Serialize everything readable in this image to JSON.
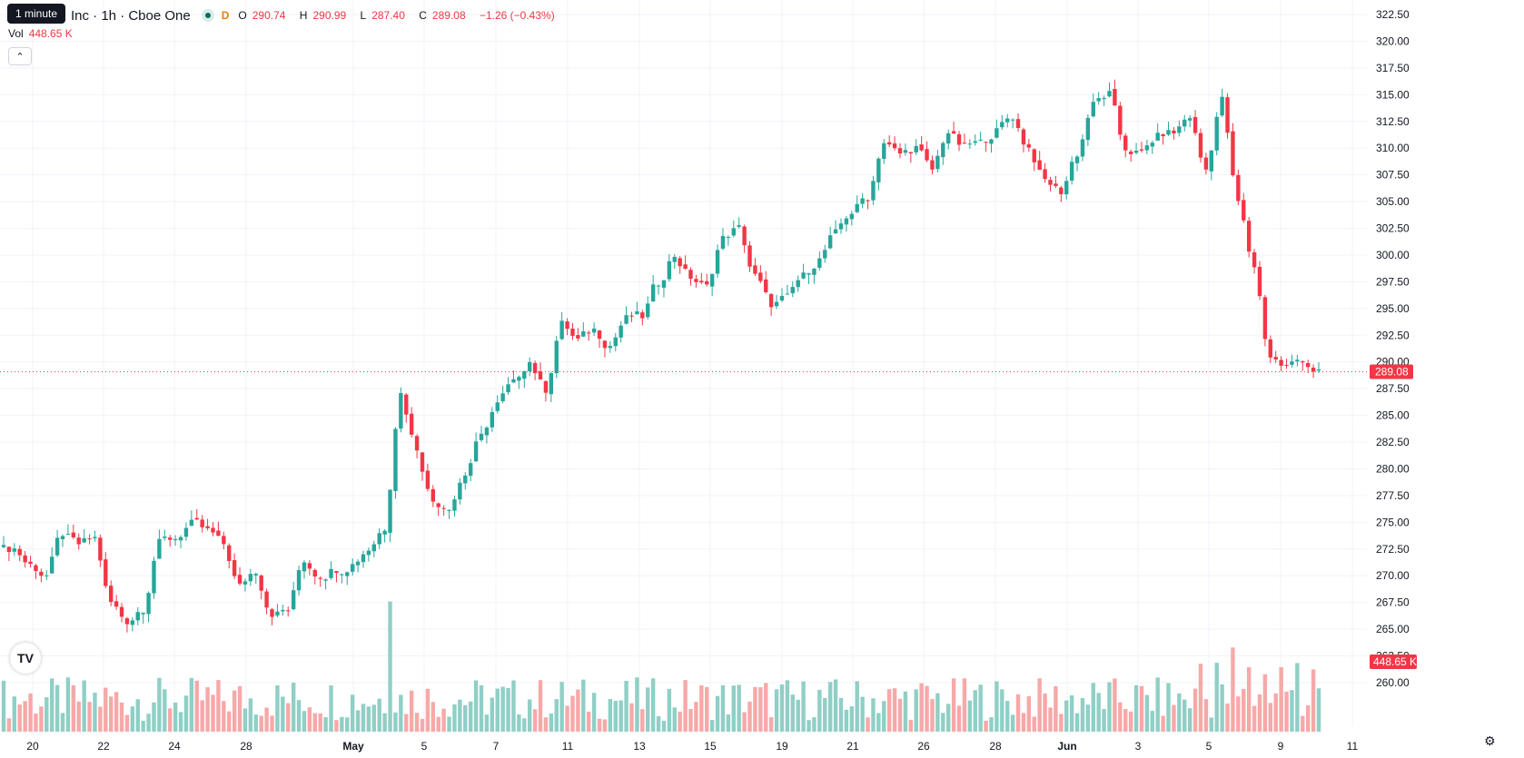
{
  "legend": {
    "tooltip": "1 minute",
    "symbol": "Inc · 1h · Cboe One",
    "market_dot_icon": "market-open-dot",
    "session_badge": "D",
    "ohlc": {
      "o_label": "O",
      "o": "290.74",
      "h_label": "H",
      "h": "290.99",
      "l_label": "L",
      "l": "287.40",
      "c_label": "C",
      "c": "289.08",
      "change": "−1.26 (−0.43%)"
    },
    "vol_label": "Vol",
    "vol_value": "448.65 K"
  },
  "colors": {
    "up": "#26a69a",
    "down": "#f23645",
    "vol_up": "#8fcfc6",
    "vol_down": "#f7a8a8",
    "grid": "#f0f3fa"
  },
  "price_axis": {
    "ticks": [
      "322.50",
      "320.00",
      "317.50",
      "315.00",
      "312.50",
      "310.00",
      "307.50",
      "305.00",
      "302.50",
      "300.00",
      "297.50",
      "295.00",
      "292.50",
      "290.00",
      "287.50",
      "285.00",
      "282.50",
      "280.00",
      "277.50",
      "275.00",
      "272.50",
      "270.00",
      "267.50",
      "265.00",
      "262.50",
      "260.00"
    ],
    "last_price_label": "289.08",
    "last_price": 289.08,
    "volume_label": "448.65 K"
  },
  "time_axis": {
    "ticks": [
      [
        "20",
        0
      ],
      [
        "22",
        1
      ],
      [
        "24",
        2
      ],
      [
        "28",
        3
      ],
      [
        "May",
        4
      ],
      [
        "5",
        5
      ],
      [
        "7",
        6
      ],
      [
        "11",
        7
      ],
      [
        "13",
        8
      ],
      [
        "15",
        9
      ],
      [
        "19",
        10
      ],
      [
        "21",
        11
      ],
      [
        "26",
        12
      ],
      [
        "28",
        13
      ],
      [
        "Jun",
        14
      ],
      [
        "3",
        15
      ],
      [
        "5",
        16
      ],
      [
        "9",
        17
      ],
      [
        "11",
        18
      ]
    ]
  },
  "chart_data": {
    "type": "candlestick",
    "y_range": [
      260,
      322.5
    ],
    "ohlc_closes": [
      272.5,
      271.0,
      270.0,
      274.0,
      273.0,
      273.5,
      267.5,
      265.8,
      267.0,
      273.0,
      273.5,
      274.8,
      274.2,
      273.0,
      269.0,
      270.5,
      266.5,
      266.8,
      271.5,
      270.0,
      270.7,
      271.0,
      272.5,
      274.5,
      287.0,
      282.0,
      277.0,
      276.5,
      279.5,
      283.0,
      286.0,
      288.0,
      290.0,
      287.5,
      293.5,
      292.0,
      293.0,
      291.5,
      294.0,
      294.3,
      297.5,
      300.0,
      298.0,
      297.0,
      301.5,
      302.5,
      298.0,
      295.5,
      296.0,
      298.0,
      299.5,
      302.0,
      304.0,
      305.5,
      310.5,
      309.5,
      310.0,
      308.0,
      311.5,
      310.0,
      310.5,
      311.5,
      313.0,
      310.0,
      307.0,
      306.0,
      309.5,
      314.0,
      315.0,
      310.0,
      309.5,
      311.0,
      311.5,
      313.0,
      308.0,
      314.5,
      305.0,
      299.0,
      290.5,
      289.5,
      290.3,
      289.08
    ]
  },
  "icons": {
    "logo": "tradingview-logo",
    "settings": "settings-gear-icon",
    "collapse": "chevron-up-icon"
  }
}
